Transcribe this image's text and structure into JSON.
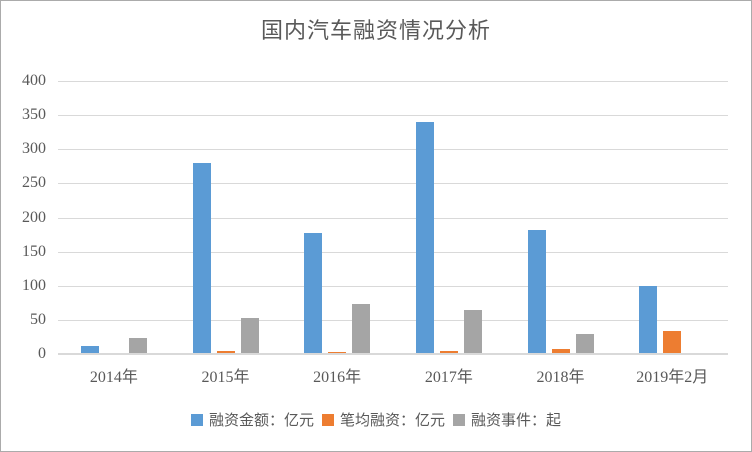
{
  "window": {
    "background": "#ffffff",
    "border_color": "#ababab"
  },
  "colors": {
    "text": "#595959",
    "gridline": "#d9d9d9",
    "axis_line": "#d9d9d9"
  },
  "chart_data": {
    "type": "bar",
    "title": "国内汽车融资情况分析",
    "categories": [
      "2014年",
      "2015年",
      "2016年",
      "2017年",
      "2018年",
      "2019年2月"
    ],
    "series": [
      {
        "id": "funding-amount",
        "name": "融资金额：亿元",
        "color": "#5B9BD5",
        "values": [
          12,
          280,
          178,
          340,
          182,
          100
        ]
      },
      {
        "id": "avg-funding",
        "name": "笔均融资：亿元",
        "color": "#ED7D31",
        "values": [
          2,
          5,
          3,
          5,
          7,
          33
        ]
      },
      {
        "id": "funding-events",
        "name": "融资事件：起",
        "color": "#A5A5A5",
        "values": [
          23,
          53,
          73,
          64,
          29,
          2
        ]
      }
    ],
    "xlabel": "",
    "ylabel": "",
    "ylim": [
      0,
      400
    ],
    "yticks": [
      0,
      50,
      100,
      150,
      200,
      250,
      300,
      350,
      400
    ],
    "grid": "horizontal",
    "legend_position": "bottom"
  }
}
